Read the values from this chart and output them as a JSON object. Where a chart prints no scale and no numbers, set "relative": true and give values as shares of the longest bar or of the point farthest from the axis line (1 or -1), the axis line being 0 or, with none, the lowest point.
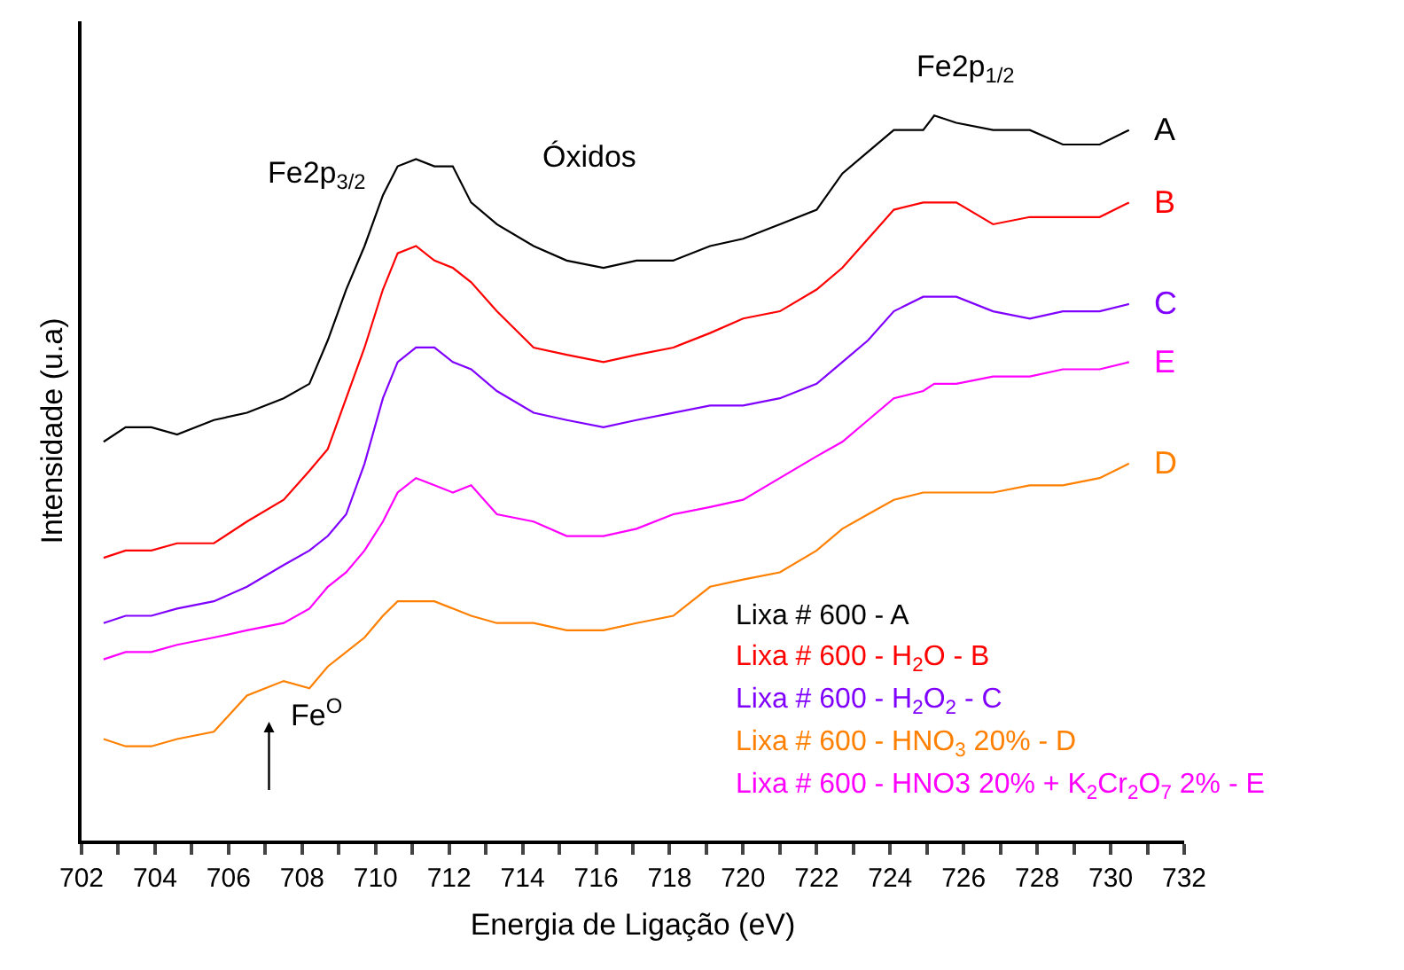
{
  "chart_data": {
    "type": "line",
    "relative": true,
    "xlabel": "Energia de Ligação (eV)",
    "ylabel": "Intensidade (u.a)",
    "x": [
      702.6,
      703.2,
      703.9,
      704.6,
      705.6,
      706.5,
      707.5,
      708.2,
      708.7,
      709.2,
      709.7,
      710.2,
      710.6,
      711.1,
      711.6,
      712.1,
      712.6,
      713.3,
      714.3,
      715.2,
      716.2,
      717.1,
      718.1,
      719.1,
      720.0,
      721.0,
      722.0,
      722.7,
      723.4,
      724.1,
      724.9,
      725.2,
      725.8,
      726.8,
      727.8,
      728.7,
      729.7,
      730.5
    ],
    "xlim": [
      702,
      732
    ],
    "xticks": [
      702,
      {
        "value": 703,
        "label": null
      },
      704,
      {
        "value": 705,
        "label": null
      },
      706,
      {
        "value": 707,
        "label": null
      },
      708,
      {
        "value": 709,
        "label": null
      },
      710,
      {
        "value": 711,
        "label": null
      },
      712,
      {
        "value": 713,
        "label": null
      },
      714,
      {
        "value": 715,
        "label": null
      },
      716,
      {
        "value": 717,
        "label": null
      },
      718,
      {
        "value": 719,
        "label": null
      },
      720,
      {
        "value": 721,
        "label": null
      },
      722,
      {
        "value": 723,
        "label": null
      },
      724,
      {
        "value": 725,
        "label": null
      },
      726,
      {
        "value": 727,
        "label": null
      },
      728,
      {
        "value": 729,
        "label": null
      },
      730,
      {
        "value": 731,
        "label": null
      },
      732
    ],
    "series": [
      {
        "name": "Lixa # 600 - A",
        "color": "#000000",
        "values": [
          0.55,
          0.57,
          0.57,
          0.56,
          0.58,
          0.59,
          0.61,
          0.63,
          0.69,
          0.76,
          0.82,
          0.89,
          0.93,
          0.94,
          0.93,
          0.93,
          0.88,
          0.85,
          0.82,
          0.8,
          0.79,
          0.8,
          0.8,
          0.82,
          0.83,
          0.85,
          0.87,
          0.92,
          0.95,
          0.98,
          0.98,
          1.0,
          0.99,
          0.98,
          0.98,
          0.96,
          0.96,
          0.98
        ]
      },
      {
        "name": "Lixa # 600 - H$_{2}$O - B",
        "color": "#ff0000",
        "values": [
          0.39,
          0.4,
          0.4,
          0.41,
          0.41,
          0.44,
          0.47,
          0.51,
          0.54,
          0.61,
          0.68,
          0.76,
          0.81,
          0.82,
          0.8,
          0.79,
          0.77,
          0.73,
          0.68,
          0.67,
          0.66,
          0.67,
          0.68,
          0.7,
          0.72,
          0.73,
          0.76,
          0.79,
          0.83,
          0.87,
          0.88,
          0.88,
          0.88,
          0.85,
          0.86,
          0.86,
          0.86,
          0.88
        ]
      },
      {
        "name": "Lixa # 600 - H$_{2}$O$_{2}$ - C",
        "color": "#8000ff",
        "values": [
          0.3,
          0.31,
          0.31,
          0.32,
          0.33,
          0.35,
          0.38,
          0.4,
          0.42,
          0.45,
          0.52,
          0.61,
          0.66,
          0.68,
          0.68,
          0.66,
          0.65,
          0.62,
          0.59,
          0.58,
          0.57,
          0.58,
          0.59,
          0.6,
          0.6,
          0.61,
          0.63,
          0.66,
          0.69,
          0.73,
          0.75,
          0.75,
          0.75,
          0.73,
          0.72,
          0.73,
          0.73,
          0.74
        ]
      },
      {
        "name": "Lixa # 600 - HNO$_{3}$ 20% - D",
        "color": "#ff8000",
        "values": [
          0.14,
          0.13,
          0.13,
          0.14,
          0.15,
          0.2,
          0.22,
          0.21,
          0.24,
          0.26,
          0.28,
          0.31,
          0.33,
          0.33,
          0.33,
          0.32,
          0.31,
          0.3,
          0.3,
          0.29,
          0.29,
          0.3,
          0.31,
          0.35,
          0.36,
          0.37,
          0.4,
          0.43,
          0.45,
          0.47,
          0.48,
          0.48,
          0.48,
          0.48,
          0.49,
          0.49,
          0.5,
          0.52
        ]
      },
      {
        "name": "Lixa # 600 - HNO3 20% + K$_{2}$Cr$_{2}$O$_{7}$ 2% - E",
        "color": "#ff00ff",
        "values": [
          0.25,
          0.26,
          0.26,
          0.27,
          0.28,
          0.29,
          0.3,
          0.32,
          0.35,
          0.37,
          0.4,
          0.44,
          0.48,
          0.5,
          0.49,
          0.48,
          0.49,
          0.45,
          0.44,
          0.42,
          0.42,
          0.43,
          0.45,
          0.46,
          0.47,
          0.5,
          0.53,
          0.55,
          0.58,
          0.61,
          0.62,
          0.63,
          0.63,
          0.64,
          0.64,
          0.65,
          0.65,
          0.66
        ]
      }
    ],
    "annotations": [
      "Fe2p$_{3/2}$",
      "Óxidos",
      "Fe2p$_{1/2}$",
      "Fe$^{O}$",
      "A",
      "B",
      "C",
      "E",
      "D"
    ],
    "legend": "bottom right",
    "marker": "none",
    "line_style": "solid"
  }
}
